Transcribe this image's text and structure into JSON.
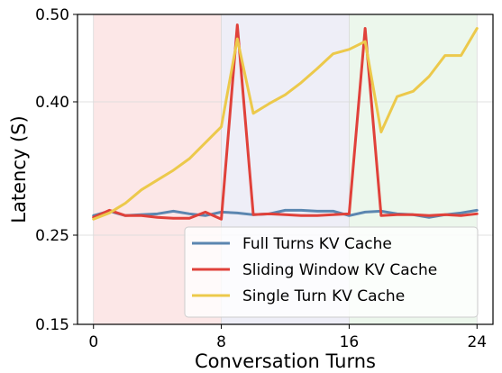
{
  "chart_data": {
    "type": "line",
    "xlabel": "Conversation Turns",
    "ylabel": "Latency (S)",
    "xlim": [
      -1,
      25
    ],
    "ylim": [
      0.15,
      0.5
    ],
    "xticks": [
      0,
      8,
      16,
      24
    ],
    "xtick_labels": [
      "0",
      "8",
      "16",
      "24"
    ],
    "yticks": [
      0.15,
      0.25,
      0.4,
      0.5
    ],
    "ytick_labels": [
      "0.15",
      "0.25",
      "0.40",
      "0.50"
    ],
    "grid": true,
    "legend_position": "lower-right",
    "shaded_regions": [
      {
        "x_start": 0,
        "x_end": 8,
        "color": "#fbe3e3"
      },
      {
        "x_start": 8,
        "x_end": 16,
        "color": "#ebebf6"
      },
      {
        "x_start": 16,
        "x_end": 24,
        "color": "#e9f6e9"
      }
    ],
    "x": [
      0,
      1,
      2,
      3,
      4,
      5,
      6,
      7,
      8,
      9,
      10,
      11,
      12,
      13,
      14,
      15,
      16,
      17,
      18,
      19,
      20,
      21,
      22,
      23,
      24
    ],
    "series": [
      {
        "name": "Full Turns KV Cache",
        "color": "#5b86b0",
        "values": [
          0.272,
          0.277,
          0.272,
          0.273,
          0.274,
          0.277,
          0.274,
          0.272,
          0.276,
          0.275,
          0.273,
          0.274,
          0.278,
          0.278,
          0.277,
          0.277,
          0.272,
          0.276,
          0.277,
          0.274,
          0.273,
          0.27,
          0.273,
          0.275,
          0.278
        ]
      },
      {
        "name": "Sliding Window KV Cache",
        "color": "#e0413a",
        "values": [
          0.27,
          0.278,
          0.272,
          0.272,
          0.27,
          0.269,
          0.269,
          0.276,
          0.268,
          0.488,
          0.273,
          0.274,
          0.273,
          0.272,
          0.272,
          0.273,
          0.274,
          0.484,
          0.272,
          0.273,
          0.273,
          0.272,
          0.273,
          0.272,
          0.274
        ]
      },
      {
        "name": "Single Turn KV Cache",
        "color": "#ecc94b",
        "values": [
          0.268,
          0.275,
          0.286,
          0.301,
          0.312,
          0.323,
          0.336,
          0.354,
          0.372,
          0.472,
          0.387,
          0.398,
          0.408,
          0.422,
          0.438,
          0.455,
          0.46,
          0.469,
          0.366,
          0.406,
          0.412,
          0.429,
          0.453,
          0.453,
          0.484
        ]
      }
    ]
  }
}
